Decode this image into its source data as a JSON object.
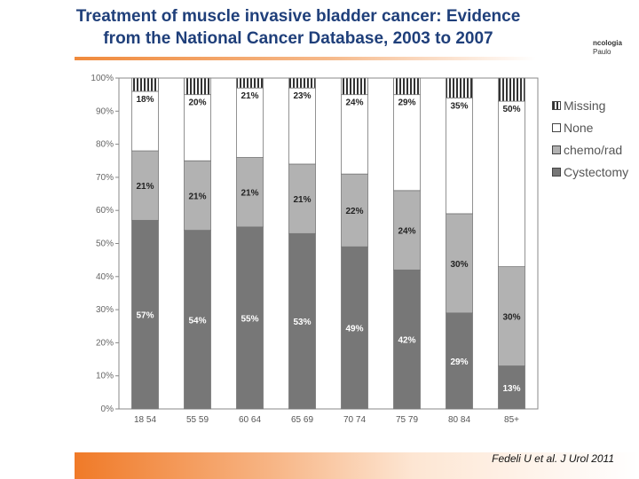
{
  "slide": {
    "title_line1": "Treatment of muscle invasive bladder cancer: Evidence",
    "title_line2": "from the National Cancer Database, 2003 to 2007",
    "logo_fragment_line1": "ncologia",
    "logo_fragment_line2": "Paulo",
    "citation": "Fedeli U et al. J Urol 2011",
    "colors": {
      "title": "#1f3f7a",
      "accent_orange": "#f07a28",
      "cystectomy": "#777777",
      "chemo_rad": "#b2b2b2",
      "none": "#ffffff",
      "missing_stripe": "#333333"
    }
  },
  "chart_data": {
    "type": "bar",
    "stacked": true,
    "percent": true,
    "categories": [
      "18 54",
      "55 59",
      "60 64",
      "65 69",
      "70 74",
      "75 79",
      "80 84",
      "85+"
    ],
    "series": [
      {
        "name": "Cystectomy",
        "values": [
          57,
          54,
          55,
          53,
          49,
          42,
          29,
          13
        ],
        "labels": [
          "57%",
          "54%",
          "55%",
          "53%",
          "49%",
          "42%",
          "29%",
          "13%"
        ]
      },
      {
        "name": "chemo/rad",
        "values": [
          21,
          21,
          21,
          21,
          22,
          24,
          30,
          30
        ],
        "labels": [
          "21%",
          "21%",
          "21%",
          "21%",
          "22%",
          "24%",
          "30%",
          "30%"
        ]
      },
      {
        "name": "None",
        "values": [
          18,
          20,
          21,
          23,
          24,
          29,
          35,
          50
        ],
        "labels": [
          "18%",
          "20%",
          "21%",
          "23%",
          "24%",
          "29%",
          "35%",
          "50%"
        ]
      },
      {
        "name": "Missing",
        "values": [
          4,
          5,
          3,
          3,
          5,
          5,
          6,
          7
        ],
        "labels": [
          "",
          "",
          "",
          "",
          "",
          "",
          "",
          ""
        ]
      }
    ],
    "y_ticks": [
      "0%",
      "10%",
      "20%",
      "30%",
      "40%",
      "50%",
      "60%",
      "70%",
      "80%",
      "90%",
      "100%"
    ],
    "ylim": [
      0,
      100
    ],
    "legend": [
      "Missing",
      "None",
      "chemo/rad",
      "Cystectomy"
    ],
    "legend_position": "right",
    "title": "",
    "xlabel": "",
    "ylabel": ""
  }
}
